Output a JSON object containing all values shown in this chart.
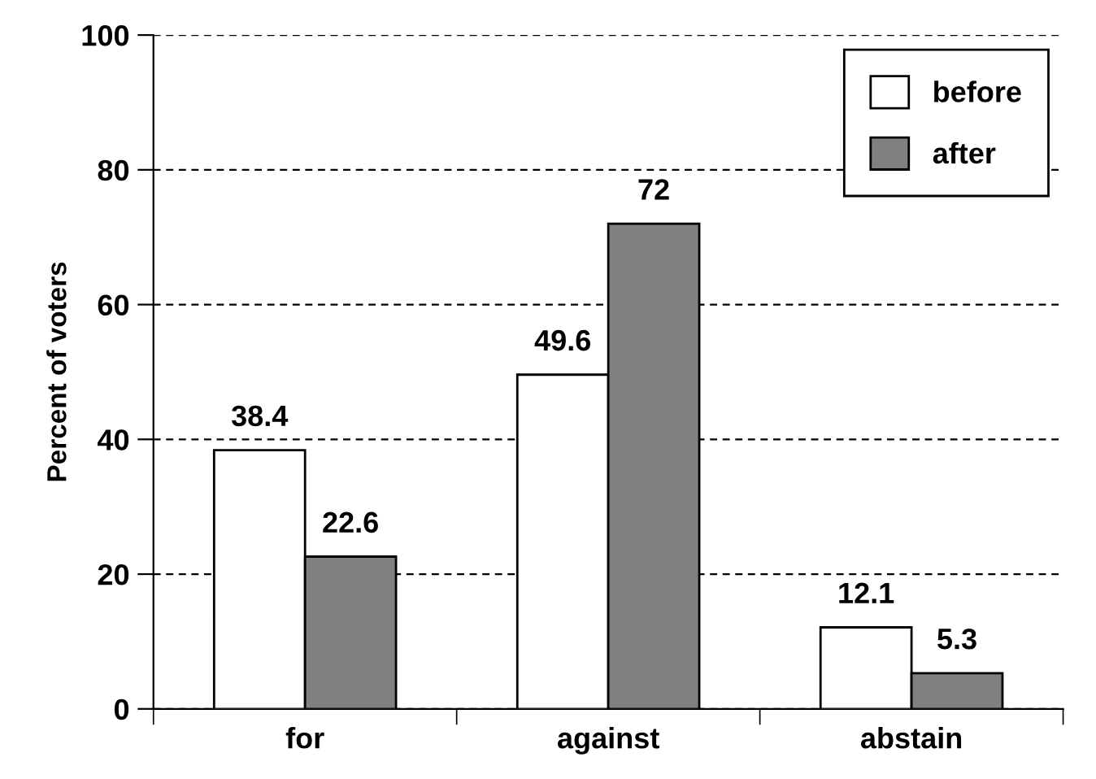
{
  "chart_data": {
    "type": "bar",
    "ylabel": "Percent of voters",
    "categories": [
      "for",
      "against",
      "abstain"
    ],
    "series": [
      {
        "name": "before",
        "color": "#ffffff",
        "values": [
          38.4,
          49.6,
          12.1
        ]
      },
      {
        "name": "after",
        "color": "#808080",
        "values": [
          22.6,
          72,
          5.3
        ]
      }
    ],
    "ylim": [
      0,
      100
    ],
    "yticks": [
      0,
      20,
      40,
      60,
      80,
      100
    ],
    "grid": "y",
    "legend": "top right",
    "data_labels": true
  }
}
